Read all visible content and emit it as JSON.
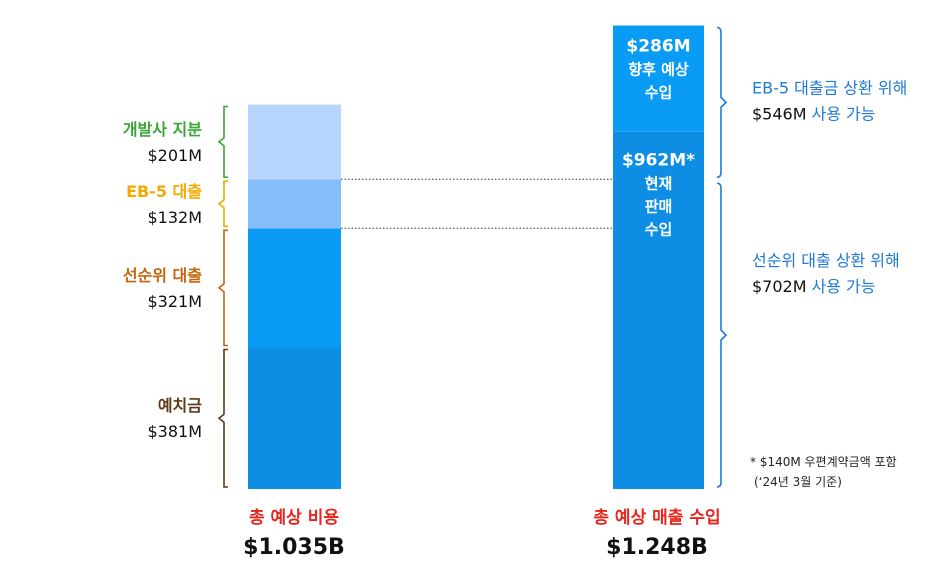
{
  "colors": {
    "cost_segments": [
      "#0d8ee4",
      "#0a9cf5",
      "#86bdfb",
      "#b8d5fd"
    ],
    "revenue_segments": [
      "#0d8ee4",
      "#0a9cf5"
    ],
    "brace_cost": [
      "#5b3a1a",
      "#c8640b",
      "#f2a900",
      "#3aa537"
    ],
    "brace_revenue": "#1f7ad6",
    "label_red": "#e8251c",
    "label_blue": "#1f7ad6"
  },
  "chart_data": {
    "type": "bar",
    "stacked": true,
    "unit": "$M",
    "cost_stack": {
      "total_label": "총 예상 비용",
      "total_value": "$1.035B",
      "segments": [
        {
          "name": "예치금",
          "value": 381,
          "value_label": "$381M"
        },
        {
          "name": "선순위 대출",
          "value": 321,
          "value_label": "$321M"
        },
        {
          "name": "EB-5 대출",
          "value": 132,
          "value_label": "$132M"
        },
        {
          "name": "개발사 지분",
          "value": 201,
          "value_label": "$201M"
        }
      ]
    },
    "revenue_stack": {
      "total_label": "총 예상 매출 수입",
      "total_value": "$1.248B",
      "segments": [
        {
          "value": 962,
          "label_lines": [
            "$962M*",
            "현재",
            "판매",
            "수입"
          ]
        },
        {
          "value": 286,
          "label_lines": [
            "$286M",
            "향후 예상",
            "수입"
          ]
        }
      ]
    },
    "brace_annotations": [
      {
        "title": "EB-5 대출금 상환 위해",
        "amount": "$546M",
        "suffix": "사용 가능"
      },
      {
        "title": "선순위 대출 상환 위해",
        "amount": "$702M",
        "suffix": "사용 가능"
      }
    ],
    "footnote": [
      "* $140M 우편계약금액 포함",
      "(‘24년 3월 기준)"
    ]
  }
}
